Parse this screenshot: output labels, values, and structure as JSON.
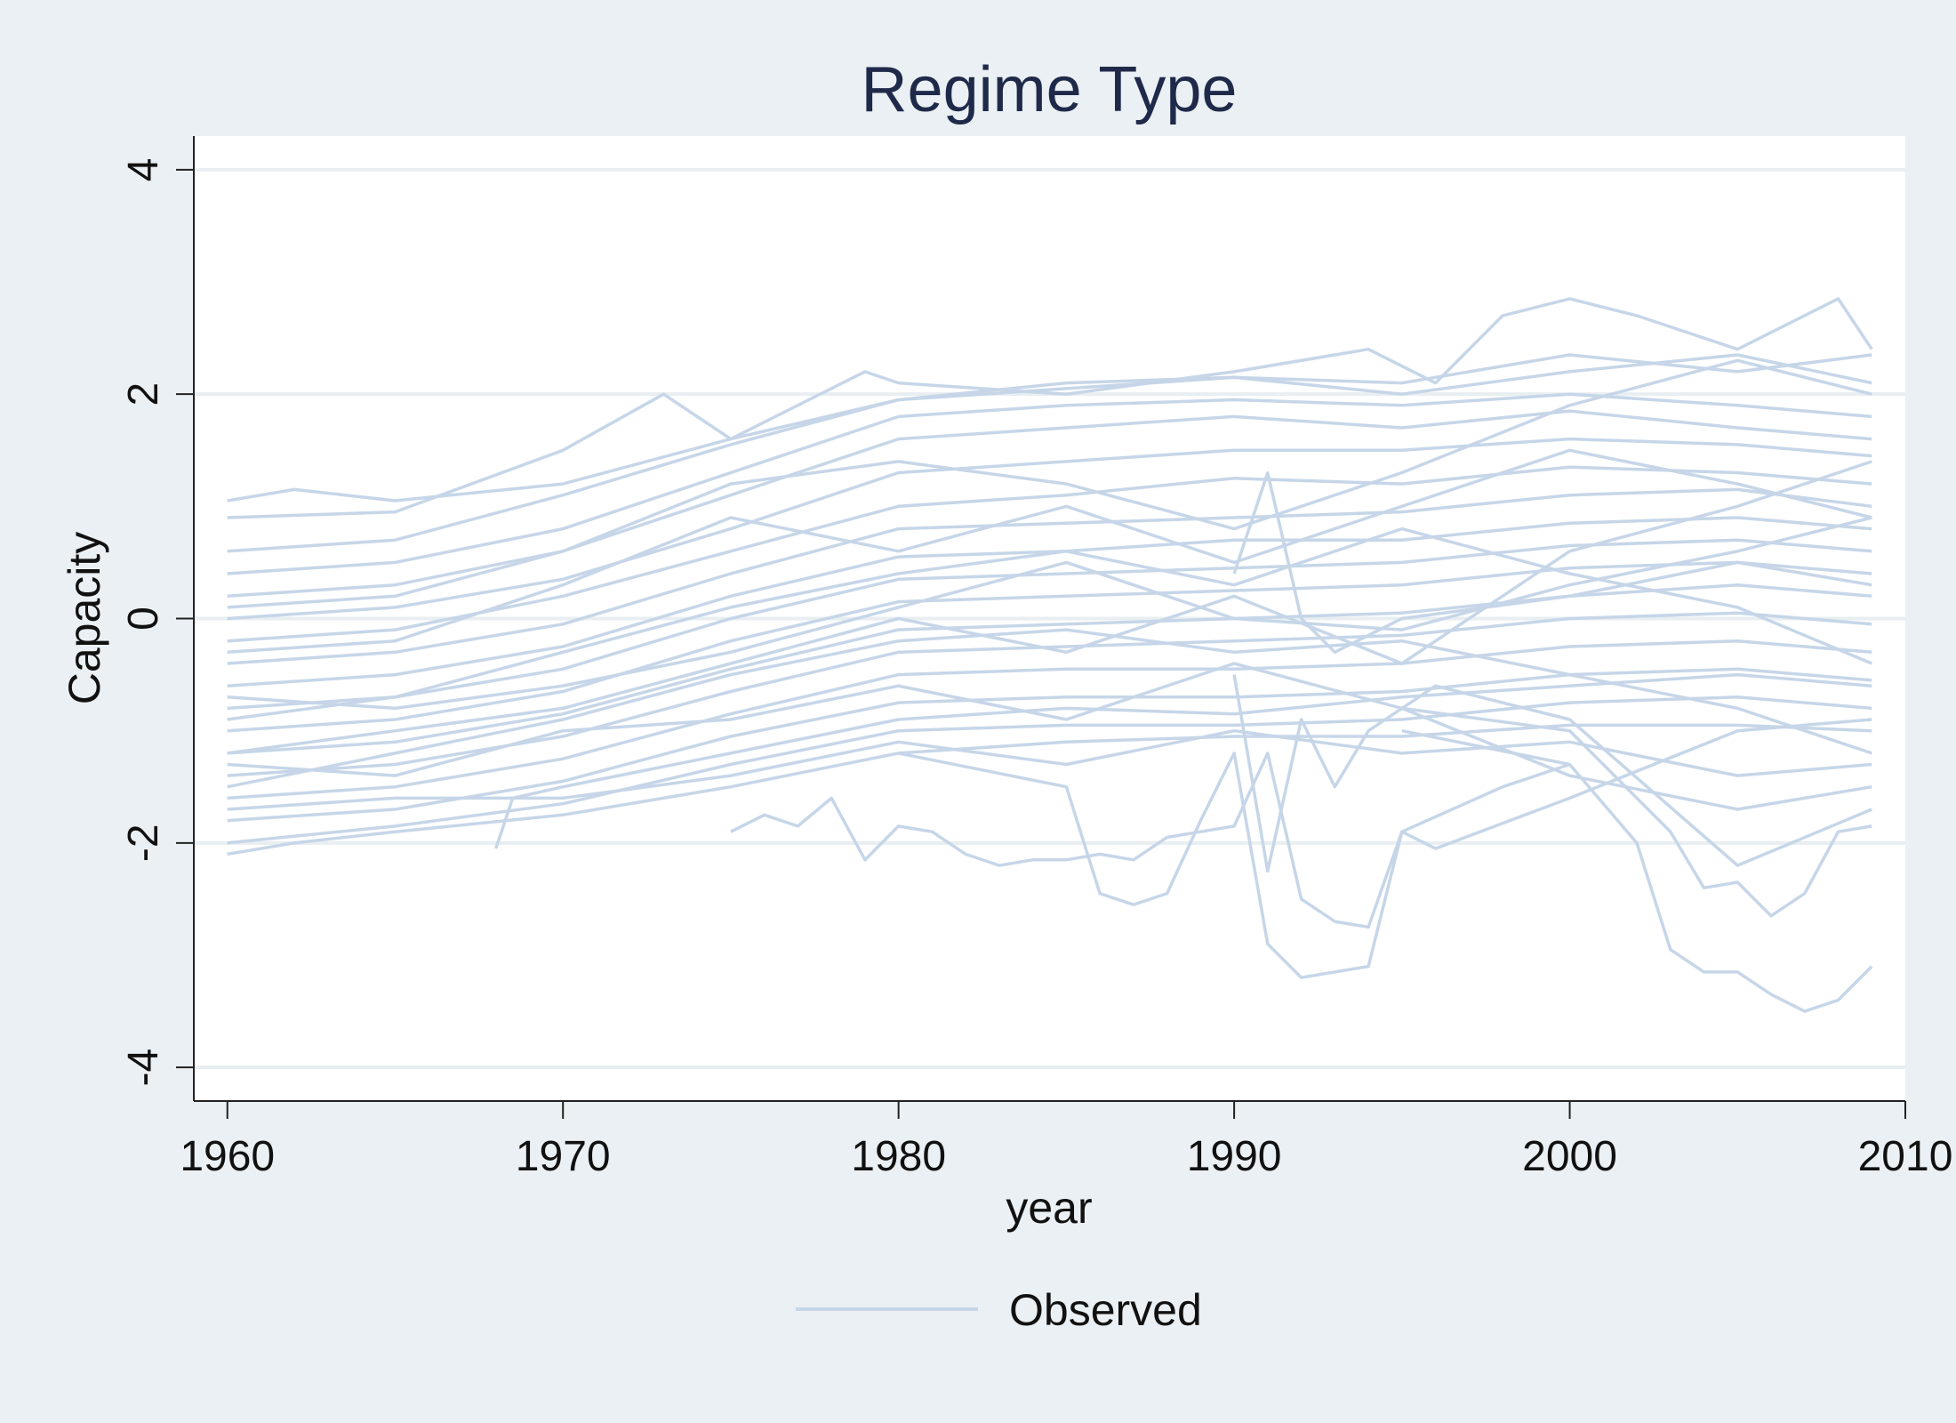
{
  "chart_data": {
    "type": "line",
    "title": "Regime Type",
    "xlabel": "year",
    "ylabel": "Capacity",
    "xlim": [
      1959,
      2010
    ],
    "ylim": [
      -4.3,
      4.3
    ],
    "x_ticks": [
      1960,
      1970,
      1980,
      1990,
      2000,
      2010
    ],
    "y_ticks": [
      -4,
      -2,
      0,
      2,
      4
    ],
    "x_tick_labels": [
      "1960",
      "1970",
      "1980",
      "1990",
      "2000",
      "2010"
    ],
    "y_tick_labels": [
      "-4",
      "-2",
      "0",
      "2",
      "4"
    ],
    "grid": "horizontal",
    "legend": {
      "placement": "bottom",
      "entries": [
        "Observed"
      ]
    },
    "line_color": "#c6d6e8",
    "series": [
      {
        "x": [
          1960,
          1962,
          1965,
          1970,
          1975,
          1980,
          1985,
          1990,
          1995,
          2000,
          2005,
          2009
        ],
        "y": [
          1.05,
          1.15,
          1.05,
          1.2,
          1.6,
          1.95,
          2.1,
          2.15,
          2.1,
          2.35,
          2.2,
          2.35
        ]
      },
      {
        "x": [
          1960,
          1965,
          1970,
          1973,
          1975,
          1979,
          1980,
          1985,
          1990,
          1994,
          1996,
          1998,
          2000,
          2002,
          2005,
          2008,
          2009
        ],
        "y": [
          0.9,
          0.95,
          1.5,
          2.0,
          1.6,
          2.2,
          2.1,
          2.0,
          2.2,
          2.4,
          2.1,
          2.7,
          2.85,
          2.7,
          2.4,
          2.85,
          2.4
        ]
      },
      {
        "x": [
          1960,
          1965,
          1970,
          1975,
          1980,
          1985,
          1990,
          1995,
          2000,
          2005,
          2009
        ],
        "y": [
          0.6,
          0.7,
          1.1,
          1.55,
          1.95,
          2.05,
          2.15,
          2.0,
          2.2,
          2.35,
          2.1
        ]
      },
      {
        "x": [
          1960,
          1965,
          1970,
          1975,
          1980,
          1985,
          1990,
          1995,
          2000,
          2005,
          2009
        ],
        "y": [
          0.4,
          0.5,
          0.8,
          1.3,
          1.8,
          1.9,
          1.95,
          1.9,
          2.0,
          1.9,
          1.8
        ]
      },
      {
        "x": [
          1960,
          1965,
          1970,
          1975,
          1980,
          1985,
          1990,
          1995,
          2000,
          2005,
          2009
        ],
        "y": [
          0.2,
          0.3,
          0.6,
          1.1,
          1.6,
          1.7,
          1.8,
          1.7,
          1.85,
          1.7,
          1.6
        ]
      },
      {
        "x": [
          1960,
          1965,
          1970,
          1975,
          1980,
          1985,
          1990,
          1995,
          2000,
          2005,
          2009
        ],
        "y": [
          0.0,
          0.1,
          0.35,
          0.8,
          1.3,
          1.4,
          1.5,
          1.5,
          1.6,
          1.55,
          1.45
        ]
      },
      {
        "x": [
          1960,
          1965,
          1970,
          1975,
          1980,
          1985,
          1990,
          1995,
          2000,
          2005,
          2009
        ],
        "y": [
          -0.2,
          -0.1,
          0.2,
          0.6,
          1.0,
          1.1,
          1.25,
          1.2,
          1.35,
          1.3,
          1.2
        ]
      },
      {
        "x": [
          1960,
          1965,
          1970,
          1975,
          1980,
          1985,
          1990,
          1995,
          2000,
          2005,
          2009
        ],
        "y": [
          -0.4,
          -0.3,
          -0.05,
          0.4,
          0.8,
          0.85,
          0.9,
          0.95,
          1.1,
          1.15,
          1.0
        ]
      },
      {
        "x": [
          1960,
          1965,
          1970,
          1975,
          1980,
          1985,
          1990,
          1995,
          2000,
          2005,
          2009
        ],
        "y": [
          -0.6,
          -0.5,
          -0.25,
          0.2,
          0.55,
          0.6,
          0.7,
          0.7,
          0.85,
          0.9,
          0.8
        ]
      },
      {
        "x": [
          1960,
          1965,
          1970,
          1975,
          1980,
          1985,
          1990,
          1995,
          2000,
          2005,
          2009
        ],
        "y": [
          -0.8,
          -0.7,
          -0.45,
          0.0,
          0.35,
          0.4,
          0.45,
          0.5,
          0.65,
          0.7,
          0.6
        ]
      },
      {
        "x": [
          1960,
          1965,
          1970,
          1975,
          1980,
          1985,
          1990,
          1995,
          2000,
          2005,
          2009
        ],
        "y": [
          -1.0,
          -0.9,
          -0.65,
          -0.2,
          0.15,
          0.2,
          0.25,
          0.3,
          0.45,
          0.5,
          0.4
        ]
      },
      {
        "x": [
          1960,
          1965,
          1970,
          1975,
          1980,
          1985,
          1990,
          1995,
          2000,
          2005,
          2009
        ],
        "y": [
          -1.2,
          -1.1,
          -0.85,
          -0.45,
          -0.1,
          -0.05,
          0.0,
          0.05,
          0.2,
          0.3,
          0.2
        ]
      },
      {
        "x": [
          1960,
          1965,
          1970,
          1975,
          1980,
          1985,
          1990,
          1995,
          2000,
          2005,
          2009
        ],
        "y": [
          -1.4,
          -1.3,
          -1.05,
          -0.65,
          -0.3,
          -0.25,
          -0.2,
          -0.15,
          0.0,
          0.05,
          -0.05
        ]
      },
      {
        "x": [
          1960,
          1965,
          1970,
          1975,
          1980,
          1985,
          1990,
          1995,
          2000,
          2005,
          2009
        ],
        "y": [
          -1.6,
          -1.5,
          -1.25,
          -0.85,
          -0.5,
          -0.45,
          -0.45,
          -0.4,
          -0.25,
          -0.2,
          -0.3
        ]
      },
      {
        "x": [
          1960,
          1965,
          1970,
          1975,
          1980,
          1985,
          1990,
          1995,
          2000,
          2005,
          2009
        ],
        "y": [
          -1.8,
          -1.7,
          -1.45,
          -1.05,
          -0.75,
          -0.7,
          -0.7,
          -0.65,
          -0.5,
          -0.45,
          -0.55
        ]
      },
      {
        "x": [
          1960,
          1965,
          1970,
          1975,
          1980,
          1985,
          1990,
          1995,
          2000,
          2005,
          2009
        ],
        "y": [
          -2.0,
          -1.85,
          -1.65,
          -1.3,
          -1.0,
          -0.95,
          -0.95,
          -0.9,
          -0.75,
          -0.7,
          -0.8
        ]
      },
      {
        "x": [
          1960,
          1962,
          1965,
          1970,
          1975,
          1980,
          1985,
          1990,
          1995,
          2000,
          2005,
          2009
        ],
        "y": [
          -2.1,
          -2.0,
          -1.9,
          -1.75,
          -1.5,
          -1.2,
          -1.1,
          -1.05,
          -1.05,
          -0.95,
          -0.95,
          -1.0
        ]
      },
      {
        "x": [
          1960,
          1965,
          1970,
          1975,
          1980,
          1985,
          1990,
          1995,
          2000,
          2005,
          2009
        ],
        "y": [
          -1.5,
          -1.2,
          -0.9,
          -0.5,
          -0.2,
          -0.1,
          -0.3,
          -0.2,
          -0.5,
          -0.8,
          -1.2
        ]
      },
      {
        "x": [
          1960,
          1965,
          1970,
          1975,
          1980,
          1985,
          1990,
          1995,
          2000,
          2005,
          2009
        ],
        "y": [
          -0.9,
          -0.7,
          -0.3,
          0.1,
          0.4,
          0.6,
          0.3,
          0.8,
          0.4,
          0.1,
          -0.4
        ]
      },
      {
        "x": [
          1960,
          1965,
          1970,
          1975,
          1980,
          1985,
          1990,
          1995,
          2000,
          2005,
          2009
        ],
        "y": [
          -1.2,
          -1.0,
          -0.8,
          -0.4,
          0.0,
          -0.3,
          0.2,
          -0.4,
          0.6,
          1.0,
          1.4
        ]
      },
      {
        "x": [
          1968,
          1968.5,
          1970,
          1975,
          1980,
          1985,
          1990,
          1995,
          2000,
          2005,
          2009
        ],
        "y": [
          -2.05,
          -1.6,
          -1.5,
          -1.2,
          -0.9,
          -0.8,
          -0.85,
          -0.7,
          -0.6,
          -0.5,
          -0.6
        ]
      },
      {
        "x": [
          1975,
          1976,
          1977,
          1978,
          1979,
          1980,
          1981,
          1982,
          1983,
          1984,
          1985,
          1986,
          1987,
          1988,
          1989,
          1990,
          1991,
          1992,
          1993,
          1994,
          1995,
          1996,
          2000,
          2005,
          2009
        ],
        "y": [
          -1.9,
          -1.75,
          -1.85,
          -1.6,
          -2.15,
          -1.85,
          -1.9,
          -2.1,
          -2.2,
          -2.15,
          -2.15,
          -2.1,
          -2.15,
          -1.95,
          -1.9,
          -1.85,
          -1.2,
          -2.5,
          -2.7,
          -2.75,
          -1.9,
          -2.05,
          -1.6,
          -1.0,
          -0.9
        ]
      },
      {
        "x": [
          1980,
          1985,
          1986,
          1987,
          1988,
          1989,
          1990,
          1991,
          1992,
          1994,
          1995,
          1998,
          2000
        ],
        "y": [
          -1.2,
          -1.5,
          -2.45,
          -2.55,
          -2.45,
          -1.8,
          -1.2,
          -2.9,
          -3.2,
          -3.1,
          -1.9,
          -1.5,
          -1.3
        ]
      },
      {
        "x": [
          1995,
          2000,
          2002,
          2003,
          2004,
          2005,
          2006,
          2007,
          2008,
          2009
        ],
        "y": [
          -1.0,
          -1.3,
          -2.0,
          -2.95,
          -3.15,
          -3.15,
          -3.35,
          -3.5,
          -3.4,
          -3.1
        ]
      },
      {
        "x": [
          1995,
          2000,
          2003,
          2004,
          2005,
          2006,
          2007,
          2008,
          2009
        ],
        "y": [
          -0.8,
          -1.0,
          -1.9,
          -2.4,
          -2.35,
          -2.65,
          -2.45,
          -1.9,
          -1.85
        ]
      },
      {
        "x": [
          1990,
          1991,
          1992,
          1993,
          1994,
          1996,
          2000,
          2005,
          2009
        ],
        "y": [
          -0.5,
          -2.25,
          -0.9,
          -1.5,
          -1.0,
          -0.6,
          -0.9,
          -2.2,
          -1.7
        ]
      },
      {
        "x": [
          1990,
          1991,
          1992,
          1993,
          1995,
          2000,
          2005,
          2009
        ],
        "y": [
          0.4,
          1.3,
          0.0,
          -0.3,
          0.0,
          0.2,
          0.5,
          0.3
        ]
      },
      {
        "x": [
          1960,
          1965,
          1970,
          1975,
          1980,
          1985,
          1990,
          1995,
          2000,
          2005,
          2009
        ],
        "y": [
          -0.3,
          -0.2,
          0.3,
          0.9,
          0.6,
          1.0,
          0.5,
          1.0,
          1.5,
          1.2,
          0.9
        ]
      },
      {
        "x": [
          1960,
          1965,
          1970,
          1975,
          1980,
          1985,
          1990,
          1995,
          2000,
          2005,
          2009
        ],
        "y": [
          -1.3,
          -1.4,
          -1.0,
          -0.9,
          -0.6,
          -0.9,
          -0.4,
          -0.8,
          -1.4,
          -1.7,
          -1.5
        ]
      },
      {
        "x": [
          1960,
          1965,
          1970,
          1975,
          1980,
          1985,
          1990,
          1995,
          2000,
          2005,
          2009
        ],
        "y": [
          0.1,
          0.2,
          0.6,
          1.2,
          1.4,
          1.2,
          0.8,
          1.3,
          1.9,
          2.3,
          2.0
        ]
      },
      {
        "x": [
          1960,
          1965,
          1970,
          1975,
          1980,
          1985,
          1990,
          1995,
          2000,
          2005,
          2009
        ],
        "y": [
          -0.7,
          -0.8,
          -0.6,
          -0.3,
          0.1,
          0.5,
          0.0,
          -0.1,
          0.3,
          0.6,
          0.9
        ]
      },
      {
        "x": [
          1960,
          1965,
          1970,
          1975,
          1980,
          1985,
          1990,
          1995,
          2000,
          2005,
          2009
        ],
        "y": [
          -1.7,
          -1.6,
          -1.6,
          -1.4,
          -1.1,
          -1.3,
          -1.0,
          -1.2,
          -1.1,
          -1.4,
          -1.3
        ]
      }
    ]
  },
  "legend_label": "Observed"
}
